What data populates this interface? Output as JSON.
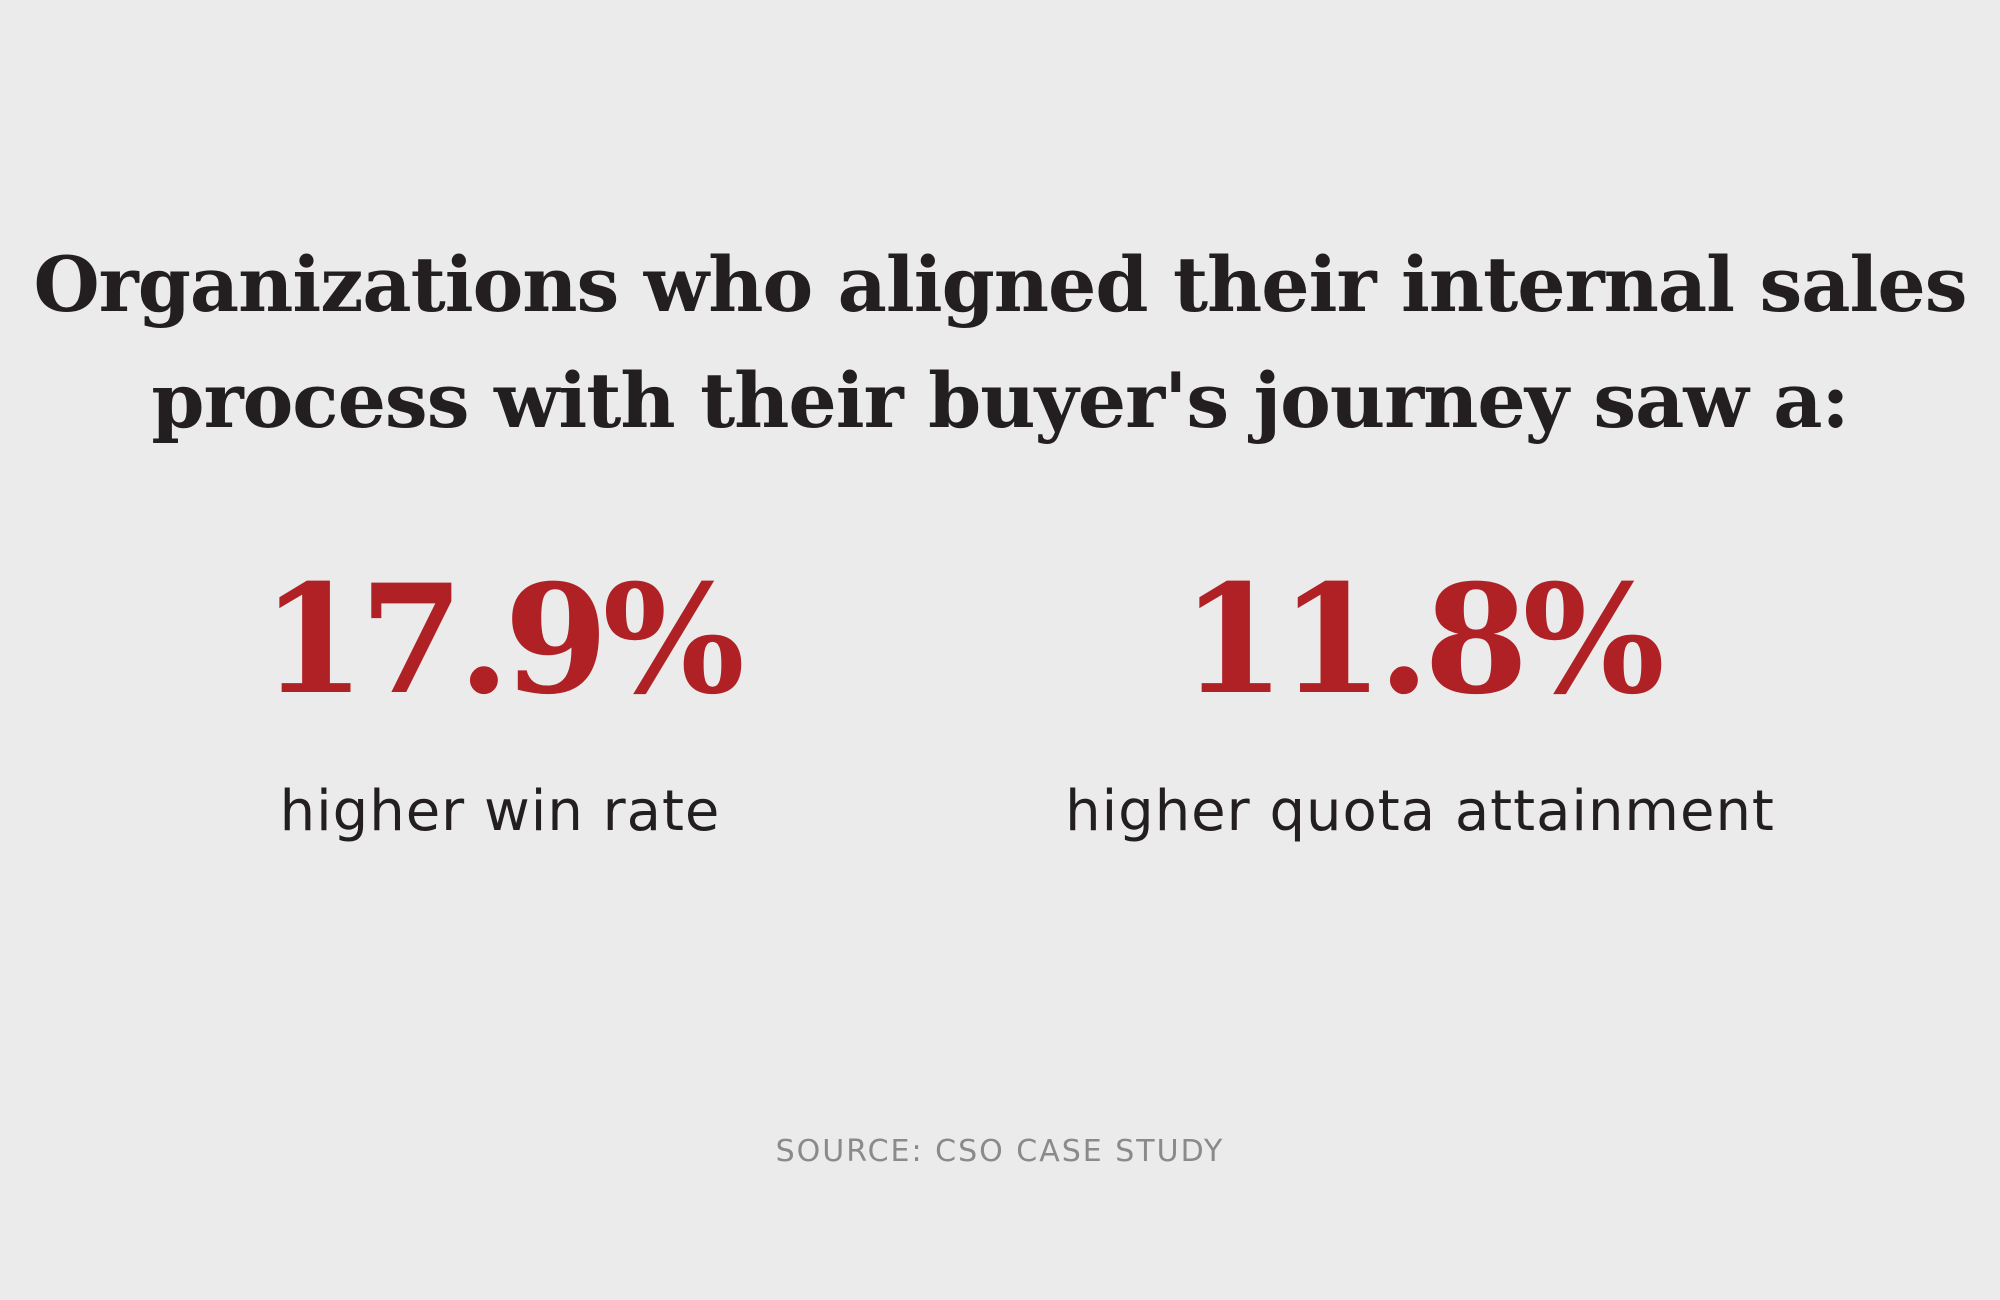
{
  "headline": {
    "line1": "Organizations who aligned their internal sales",
    "line2": "process with their buyer's journey saw a:"
  },
  "stats": [
    {
      "value": "17.9%",
      "label": "higher win rate"
    },
    {
      "value": "11.8%",
      "label": "higher quota attainment"
    }
  ],
  "source": "SOURCE: CSO CASE STUDY",
  "colors": {
    "background": "#ebebeb",
    "text": "#231f20",
    "accent": "#b02126",
    "muted": "#8a8a8a"
  }
}
